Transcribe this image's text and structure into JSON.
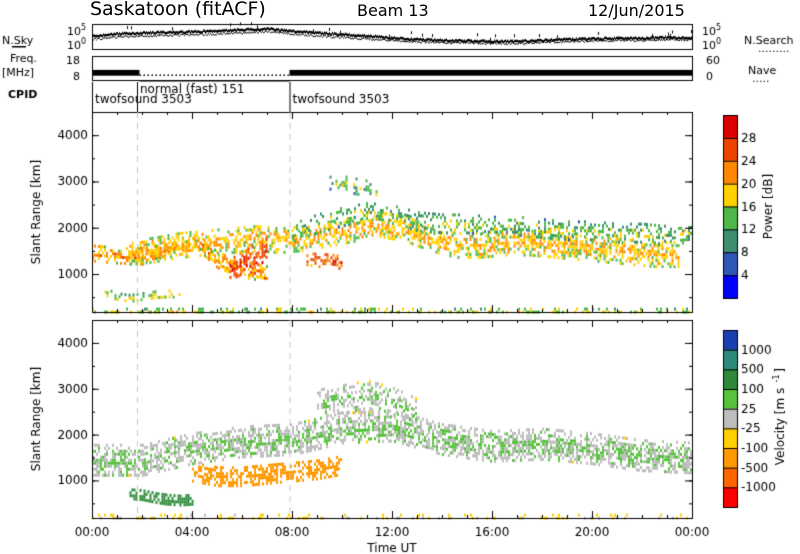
{
  "header": {
    "site": "Saskatoon (fitACF)",
    "beam": "Beam 13",
    "date": "12/Jun/2015"
  },
  "status_panels": {
    "noise": {
      "left_label": "N.Sky",
      "right_label": "N.Search",
      "left_ticks": [
        "10^5",
        "10^0"
      ],
      "right_ticks": [
        "10^5",
        "10^0"
      ]
    },
    "frequency": {
      "left_label": "Freq.",
      "left_unit": "[MHz]",
      "left_ticks": [
        "18",
        "8"
      ],
      "right_label": "Nave",
      "right_ticks": [
        "60",
        "0"
      ]
    },
    "cpid": {
      "label": "CPID",
      "segments": [
        {
          "name": "twofsound 3503",
          "start_h": 0,
          "end_h": 1.8
        },
        {
          "name": "normal (fast) 151",
          "start_h": 1.8,
          "end_h": 7.9
        },
        {
          "name": "twofsound 3503",
          "start_h": 7.9,
          "end_h": 24
        }
      ]
    }
  },
  "colorbars": {
    "power": {
      "title": "Power [dB]",
      "ticks": [
        "4",
        "8",
        "12",
        "16",
        "20",
        "24",
        "28"
      ],
      "colors": [
        "#0000ff",
        "#2e57b8",
        "#3e8f70",
        "#4fb84a",
        "#ffd000",
        "#ff8800",
        "#ee4400",
        "#dd0000"
      ]
    },
    "velocity": {
      "title": "Velocity [m s-1]",
      "ticks": [
        "1000",
        "500",
        "100",
        "25",
        "-25",
        "-100",
        "-500",
        "-1000"
      ],
      "colors": [
        "#1a3fb0",
        "#2f8a7e",
        "#2e8a3a",
        "#55c43a",
        "#bdbdbd",
        "#ffd000",
        "#ff9900",
        "#ff6600",
        "#ff0000"
      ]
    }
  },
  "chart_data": [
    {
      "type": "heatmap",
      "name": "power",
      "xlabel": "",
      "ylabel": "Slant Range [km]",
      "xlim": [
        0,
        24
      ],
      "ylim": [
        180,
        4500
      ],
      "y_ticks": [
        "1000",
        "2000",
        "3000",
        "4000"
      ],
      "x_ticks": [
        "00:00",
        "04:00",
        "08:00",
        "12:00",
        "16:00",
        "20:00",
        "00:00"
      ],
      "clim": [
        0,
        32
      ],
      "bands": [
        {
          "t": [
            0,
            1,
            2,
            3,
            4,
            5,
            6,
            7
          ],
          "r": [
            1450,
            1400,
            1380,
            1500,
            1800,
            1300,
            1100,
            1000
          ],
          "width": 380,
          "value": 18,
          "density": 0.6
        },
        {
          "t": [
            1.5,
            2.5,
            3.5,
            4.5,
            5.5,
            6.5,
            7.5,
            8.5,
            9.5,
            10.5,
            11.5,
            12.5,
            13.5,
            14.5,
            15.5,
            16.5,
            17.5,
            18.5,
            19.5,
            20.5,
            21.5,
            22.5,
            23.5
          ],
          "r": [
            1500,
            1550,
            1650,
            1700,
            1750,
            1800,
            1750,
            1800,
            1900,
            2000,
            2100,
            2000,
            1800,
            1650,
            1650,
            1700,
            1700,
            1650,
            1600,
            1550,
            1500,
            1450,
            1450
          ],
          "width": 520,
          "value": 16,
          "density": 0.65
        },
        {
          "t": [
            8,
            9,
            10,
            11,
            12,
            13,
            14,
            15,
            16,
            17,
            18,
            19,
            20,
            21,
            22,
            23,
            24
          ],
          "r": [
            1900,
            2100,
            2250,
            2350,
            2300,
            2150,
            2100,
            2100,
            2050,
            2050,
            2000,
            1950,
            1950,
            1900,
            1900,
            1850,
            1900
          ],
          "width": 420,
          "value": 11,
          "density": 0.45
        },
        {
          "t": [
            0.5,
            1,
            1.5,
            2,
            2.5,
            3,
            3.5
          ],
          "r": [
            620,
            520,
            480,
            520,
            560,
            580,
            560
          ],
          "width": 180,
          "value": 14,
          "density": 0.55
        },
        {
          "t": [
            5.5,
            6,
            6.5,
            7
          ],
          "r": [
            1100,
            1250,
            1400,
            1550
          ],
          "width": 500,
          "value": 24,
          "density": 0.7
        },
        {
          "t": [
            8.5,
            9,
            9.5,
            10
          ],
          "r": [
            1350,
            1300,
            1300,
            1250
          ],
          "width": 300,
          "value": 22,
          "density": 0.6
        },
        {
          "t": [
            9.5,
            10,
            10.5,
            11,
            11.5
          ],
          "r": [
            3000,
            2950,
            2900,
            2850,
            2800
          ],
          "width": 380,
          "value": 10,
          "density": 0.35
        },
        {
          "t": [
            0,
            4,
            8,
            12,
            16,
            20,
            24
          ],
          "r": [
            230,
            230,
            230,
            230,
            230,
            230,
            230
          ],
          "width": 90,
          "value": 14,
          "density": 0.5
        }
      ]
    },
    {
      "type": "heatmap",
      "name": "velocity",
      "xlabel": "Time UT",
      "ylabel": "Slant Range [km]",
      "xlim": [
        0,
        24
      ],
      "ylim": [
        180,
        4500
      ],
      "y_ticks": [
        "1000",
        "2000",
        "3000",
        "4000"
      ],
      "x_ticks": [
        "00:00",
        "04:00",
        "08:00",
        "12:00",
        "16:00",
        "20:00",
        "00:00"
      ],
      "bands": [
        {
          "t": [
            0,
            2,
            4,
            6,
            8,
            10,
            12,
            14,
            16,
            18,
            20,
            22,
            24
          ],
          "r": [
            1450,
            1450,
            1700,
            1850,
            1900,
            2150,
            2200,
            1900,
            1750,
            1800,
            1700,
            1550,
            1500
          ],
          "width": 700,
          "value": 0,
          "density": 0.75
        },
        {
          "t": [
            9,
            10,
            11,
            12,
            13
          ],
          "r": [
            2700,
            2800,
            2900,
            2750,
            2500
          ],
          "width": 600,
          "value": 0,
          "density": 0.5
        },
        {
          "t": [
            1.5,
            2,
            2.5,
            3,
            3.5,
            4
          ],
          "r": [
            700,
            680,
            620,
            580,
            560,
            580
          ],
          "width": 260,
          "value": 300,
          "density": 0.85
        },
        {
          "t": [
            4,
            5,
            6,
            7,
            8,
            9,
            10
          ],
          "r": [
            1200,
            1100,
            1100,
            1150,
            1200,
            1250,
            1350
          ],
          "width": 420,
          "value": -300,
          "density": 0.7
        },
        {
          "t": [
            0,
            4,
            8,
            12,
            16,
            20,
            24
          ],
          "r": [
            230,
            230,
            230,
            230,
            230,
            230,
            230
          ],
          "width": 90,
          "value": -50,
          "density": 0.35
        }
      ]
    },
    {
      "type": "line",
      "name": "noise",
      "x": [
        0,
        1,
        2,
        3,
        4,
        5,
        6,
        7,
        8,
        9,
        10,
        11,
        12,
        13,
        14,
        15,
        16,
        17,
        18,
        19,
        20,
        21,
        22,
        23,
        24
      ],
      "sky": [
        2.5,
        3.0,
        3.2,
        3.3,
        3.4,
        3.6,
        3.8,
        4.0,
        3.6,
        3.2,
        2.9,
        2.6,
        2.2,
        1.9,
        1.7,
        1.6,
        1.5,
        1.5,
        1.7,
        1.9,
        2.0,
        2.1,
        2.1,
        2.3,
        2.2
      ],
      "search": [
        2.0,
        2.5,
        2.7,
        2.8,
        2.9,
        3.1,
        3.3,
        3.6,
        3.1,
        2.7,
        2.4,
        2.1,
        1.8,
        1.5,
        1.4,
        1.3,
        1.2,
        1.2,
        1.4,
        1.6,
        1.7,
        1.8,
        1.8,
        2.0,
        1.9
      ],
      "ylim": [
        0,
        5
      ]
    },
    {
      "type": "line",
      "name": "frequency",
      "x": [
        0,
        1.9,
        1.9,
        7.9,
        7.9,
        24
      ],
      "freq": [
        11,
        11,
        10.3,
        10.3,
        11,
        11
      ],
      "nave": [
        0,
        0,
        0,
        0,
        0,
        0
      ],
      "ylim": [
        8,
        18
      ]
    }
  ],
  "axis": {
    "time_label": "Time UT"
  }
}
